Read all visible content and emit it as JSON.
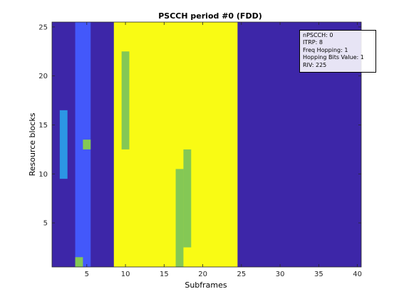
{
  "chart_data": {
    "type": "heatmap",
    "title": "PSCCH period #0 (FDD)",
    "xlabel": "Subframes",
    "ylabel": "Resource blocks",
    "xlim": [
      0.5,
      40.5
    ],
    "ylim": [
      0.5,
      25.5
    ],
    "xticks": [
      5,
      10,
      15,
      20,
      25,
      30,
      35,
      40
    ],
    "yticks": [
      5,
      10,
      15,
      20,
      25
    ],
    "grid": false,
    "legend_placement": "top-right",
    "colors": {
      "background": "#3d26a8",
      "blue": "#4358fb",
      "light_blue": "#2c96e4",
      "green": "#84c855",
      "yellow": "#f9fb14"
    },
    "cells": [
      {
        "x": [
          2,
          2
        ],
        "y": [
          10,
          16
        ],
        "color": "light_blue"
      },
      {
        "x": [
          4,
          5
        ],
        "y": [
          1,
          25
        ],
        "color": "blue"
      },
      {
        "x": [
          9,
          24
        ],
        "y": [
          1,
          25
        ],
        "color": "yellow"
      },
      {
        "x": [
          10,
          10
        ],
        "y": [
          13,
          22
        ],
        "color": "green"
      },
      {
        "x": [
          5,
          5
        ],
        "y": [
          13,
          13
        ],
        "color": "green"
      },
      {
        "x": [
          4,
          4
        ],
        "y": [
          1,
          1
        ],
        "color": "green"
      },
      {
        "x": [
          17,
          17
        ],
        "y": [
          1,
          10
        ],
        "color": "green"
      },
      {
        "x": [
          18,
          18
        ],
        "y": [
          3,
          12
        ],
        "color": "green"
      }
    ],
    "annotation_lines": [
      "nPSCCH: 0",
      "ITRP: 8",
      "Freq Hopping: 1",
      "Hopping Bits Value: 1",
      "RIV: 225"
    ]
  }
}
